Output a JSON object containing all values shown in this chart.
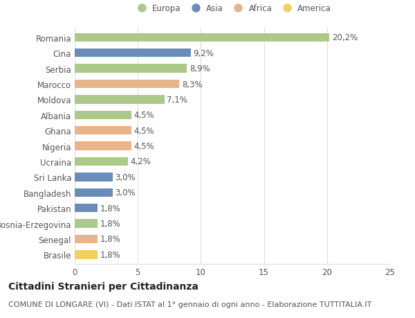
{
  "categories": [
    "Romania",
    "Cina",
    "Serbia",
    "Marocco",
    "Moldova",
    "Albania",
    "Ghana",
    "Nigeria",
    "Ucraina",
    "Sri Lanka",
    "Bangladesh",
    "Pakistan",
    "Bosnia-Erzegovina",
    "Senegal",
    "Brasile"
  ],
  "values": [
    20.2,
    9.2,
    8.9,
    8.3,
    7.1,
    4.5,
    4.5,
    4.5,
    4.2,
    3.0,
    3.0,
    1.8,
    1.8,
    1.8,
    1.8
  ],
  "labels": [
    "20,2%",
    "9,2%",
    "8,9%",
    "8,3%",
    "7,1%",
    "4,5%",
    "4,5%",
    "4,5%",
    "4,2%",
    "3,0%",
    "3,0%",
    "1,8%",
    "1,8%",
    "1,8%",
    "1,8%"
  ],
  "continents": [
    "Europa",
    "Asia",
    "Europa",
    "Africa",
    "Europa",
    "Europa",
    "Africa",
    "Africa",
    "Europa",
    "Asia",
    "Asia",
    "Asia",
    "Europa",
    "Africa",
    "America"
  ],
  "colors": {
    "Europa": "#adc98a",
    "Asia": "#6b8cba",
    "Africa": "#e8b48a",
    "America": "#f0d060"
  },
  "legend_order": [
    "Europa",
    "Asia",
    "Africa",
    "America"
  ],
  "title": "Cittadini Stranieri per Cittadinanza",
  "subtitle": "COMUNE DI LONGARE (VI) - Dati ISTAT al 1° gennaio di ogni anno - Elaborazione TUTTITALIA.IT",
  "xlim": [
    0,
    25
  ],
  "xticks": [
    0,
    5,
    10,
    15,
    20,
    25
  ],
  "bg_color": "#ffffff",
  "grid_color": "#dddddd",
  "bar_height": 0.55,
  "label_fontsize": 8.5,
  "tick_fontsize": 8.5,
  "title_fontsize": 10,
  "subtitle_fontsize": 8
}
